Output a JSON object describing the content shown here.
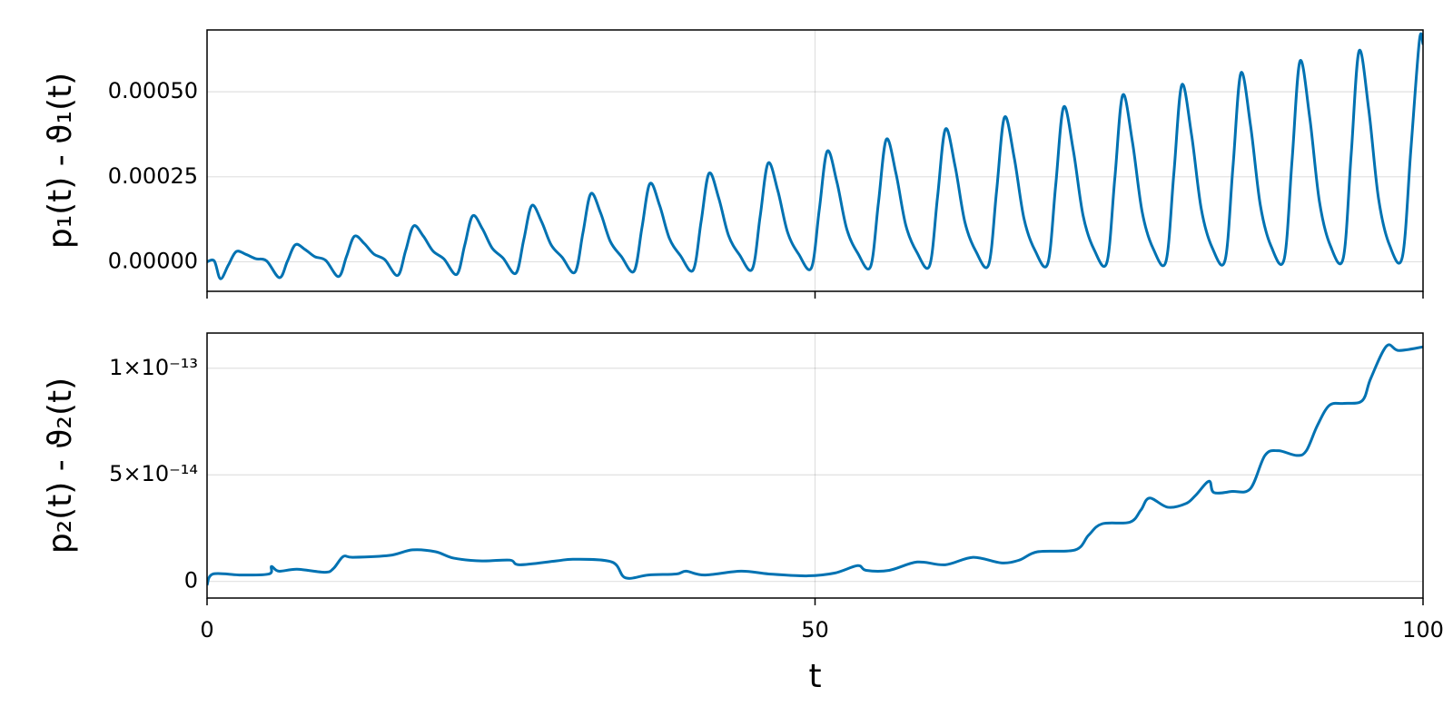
{
  "chart_data": [
    {
      "type": "line",
      "ylabel": "p₁(t) - ϑ₁(t)",
      "color": "#0072b2",
      "grid": true,
      "xlim": [
        0,
        100
      ],
      "xticks": [
        0,
        50,
        100
      ],
      "ylim": [
        -8.7e-05,
        0.000682
      ],
      "yticks": [
        {
          "value": 0,
          "label": "0.00000"
        },
        {
          "value": 0.00025,
          "label": "0.00025"
        },
        {
          "value": 0.0005,
          "label": "0.00050"
        }
      ],
      "x": [
        0,
        0.6,
        1.1,
        1.75,
        2.4,
        3.2,
        4.0,
        4.9,
        5.96,
        6.61,
        7.26,
        8.06,
        8.86,
        9.76,
        10.82,
        11.47,
        12.12,
        12.92,
        13.72,
        14.62,
        15.68,
        16.33,
        16.98,
        17.78,
        18.58,
        19.48,
        20.54,
        21.19,
        21.84,
        22.64,
        23.44,
        24.34,
        25.4,
        26.05,
        26.7,
        27.5,
        28.3,
        29.2,
        30.26,
        30.91,
        31.56,
        32.36,
        33.16,
        34.06,
        35.12,
        35.77,
        36.42,
        37.22,
        38.02,
        38.92,
        39.98,
        40.63,
        41.28,
        42.08,
        42.88,
        43.78,
        44.84,
        45.49,
        46.14,
        46.94,
        47.74,
        48.64,
        49.7,
        50.35,
        51.0,
        51.8,
        52.6,
        53.5,
        54.56,
        55.21,
        55.86,
        56.66,
        57.46,
        58.36,
        59.42,
        60.07,
        60.72,
        61.52,
        62.32,
        63.22,
        64.28,
        64.93,
        65.58,
        66.38,
        67.18,
        68.08,
        69.14,
        69.79,
        70.44,
        71.24,
        72.04,
        72.94,
        74.0,
        74.65,
        75.3,
        76.1,
        76.9,
        77.8,
        78.86,
        79.51,
        80.16,
        80.96,
        81.76,
        82.66,
        83.72,
        84.37,
        85.02,
        85.82,
        86.62,
        87.52,
        88.58,
        89.23,
        89.88,
        90.68,
        91.48,
        92.38,
        93.44,
        94.09,
        94.74,
        95.54,
        96.34,
        97.24,
        98.3,
        99.0,
        99.7,
        100
      ],
      "values": [
        0,
        2e-06,
        -5e-05,
        -1e-05,
        3e-05,
        2.16e-05,
        9e-06,
        2.4e-06,
        -4.68e-05,
        1.6e-06,
        5e-05,
        3.6e-05,
        1.5e-05,
        4e-06,
        -4.36e-05,
        1.57e-05,
        7.5e-05,
        5.4e-05,
        2.25e-05,
        6e-06,
        -4.04e-05,
        3.23e-05,
        0.000105,
        7.56e-05,
        3.15e-05,
        8.4e-06,
        -3.72e-05,
        4.89e-05,
        0.000135,
        9.72e-05,
        4.05e-05,
        1.08e-05,
        -3.4e-05,
        6.55e-05,
        0.000165,
        0.0001188,
        4.95e-05,
        1.32e-05,
        -3.08e-05,
        8.46e-05,
        0.0002,
        0.000144,
        6e-05,
        1.6e-05,
        -2.76e-05,
        0.0001012,
        0.00023,
        0.0001656,
        6.9e-05,
        1.84e-05,
        -2.44e-05,
        0.0001178,
        0.00026,
        0.0001872,
        7.8e-05,
        2.08e-05,
        -2.12e-05,
        0.0001344,
        0.00029,
        0.0002088,
        8.7e-05,
        2.32e-05,
        -1.8e-05,
        0.0001535,
        0.000325,
        0.000234,
        9.75e-05,
        2.6e-05,
        -1.48e-05,
        0.0001726,
        0.00036,
        0.0002592,
        0.000108,
        2.88e-05,
        -1.16e-05,
        0.0001892,
        0.00039,
        0.0002808,
        0.000117,
        3.12e-05,
        -8.4e-06,
        0.0002083,
        0.000425,
        0.000306,
        0.0001275,
        3.4e-05,
        -5.2e-06,
        0.0002249,
        0.000455,
        0.0003276,
        0.0001365,
        3.64e-05,
        -2e-06,
        0.000244,
        0.00049,
        0.0003528,
        0.000147,
        3.92e-05,
        1.2e-06,
        0.0002606,
        0.00052,
        0.0003744,
        0.000156,
        4.16e-05,
        4.4e-06,
        0.0002797,
        0.000555,
        0.0003996,
        0.0001665,
        4.44e-05,
        7.6e-06,
        0.0002988,
        0.00059,
        0.0004248,
        0.000177,
        4.72e-05,
        1.08e-05,
        0.0003154,
        0.00062,
        0.0004464,
        0.000186,
        4.96e-05,
        1.4e-05,
        0.00033,
        0.00065,
        0.00064
      ]
    },
    {
      "type": "line",
      "xlabel": "t",
      "ylabel": "p₂(t) - ϑ₂(t)",
      "color": "#0072b2",
      "grid": true,
      "xlim": [
        0,
        100
      ],
      "xticks": [
        0,
        50,
        100
      ],
      "ylim": [
        -7.8e-15,
        1.165e-13
      ],
      "yticks": [
        0,
        {
          "value": 5e-14,
          "label": "5×10⁻¹⁴"
        },
        {
          "value": 1e-13,
          "label": "1×10⁻¹³"
        }
      ],
      "x": [
        0,
        0.5,
        2.8,
        5.1,
        5.3,
        5.9,
        7.4,
        9.7,
        10.4,
        11.2,
        12,
        15,
        16.9,
        18.8,
        20.3,
        22.6,
        24.9,
        25.7,
        28.7,
        30.2,
        33.3,
        34.4,
        36.3,
        38.6,
        39.4,
        40.9,
        43.9,
        46.2,
        49.3,
        51.6,
        53.5,
        54.2,
        56.1,
        58.4,
        60.7,
        63,
        65.3,
        66.8,
        68.3,
        71.4,
        72.5,
        73.6,
        75.9,
        76.8,
        77.5,
        79,
        80.5,
        81.3,
        82.4,
        82.8,
        84.3,
        85.8,
        87,
        88.1,
        89.6,
        90.4,
        91.3,
        92.3,
        93.5,
        95,
        95.7,
        97,
        98,
        100
      ],
      "values": [
        -1.7e-15,
        3.5e-15,
        3e-15,
        3.5e-15,
        7e-15,
        4.8e-15,
        5.7e-15,
        4.3e-15,
        6.1e-15,
        1.17e-14,
        1.13e-14,
        1.22e-14,
        1.48e-14,
        1.39e-14,
        1.09e-14,
        9.6e-15,
        1e-14,
        7.8e-15,
        9.6e-15,
        1.04e-14,
        9.1e-15,
        1.7e-15,
        3e-15,
        3.5e-15,
        4.8e-15,
        3e-15,
        4.8e-15,
        3.5e-15,
        2.6e-15,
        3.9e-15,
        7.4e-15,
        5.2e-15,
        5.2e-15,
        9.1e-15,
        7.8e-15,
        1.13e-14,
        8.7e-15,
        1e-14,
        1.39e-14,
        1.48e-14,
        2.17e-14,
        2.7e-14,
        2.78e-14,
        3.35e-14,
        3.91e-14,
        3.48e-14,
        3.65e-14,
        4.04e-14,
        4.7e-14,
        4.17e-14,
        4.22e-14,
        4.35e-14,
        5.91e-14,
        6.13e-14,
        5.91e-14,
        6.13e-14,
        7.3e-14,
        8.26e-14,
        8.35e-14,
        8.48e-14,
        9.52e-14,
        1.104e-13,
        1.083e-13,
        1.1e-13
      ]
    }
  ]
}
